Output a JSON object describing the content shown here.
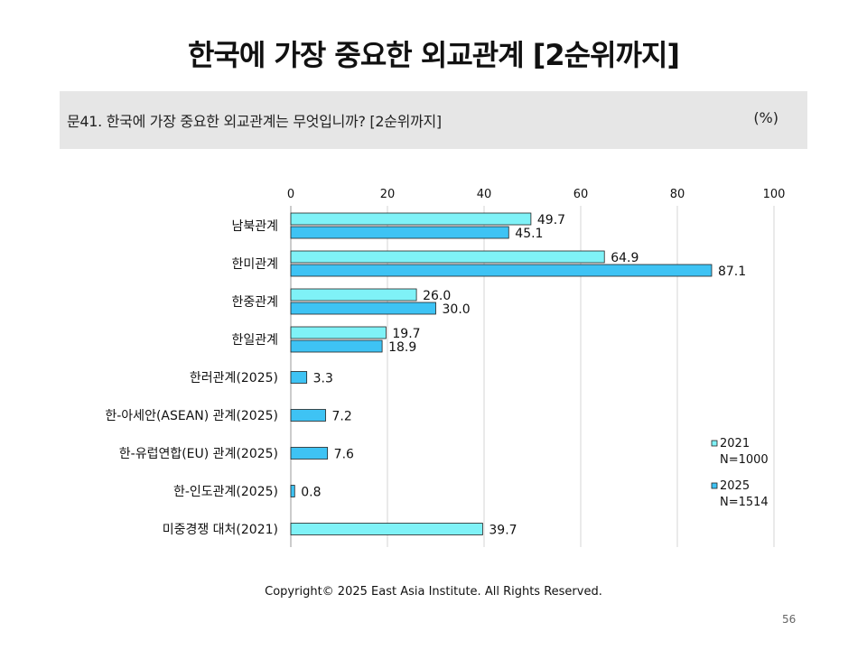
{
  "page": {
    "title": "한국에 가장 중요한 외교관계 [2순위까지]",
    "question": "문41. 한국에 가장 중요한 외교관계는 무엇입니까? [2순위까지]",
    "unit": "(%)",
    "footer": "Copyright© 2025 East Asia Institute. All Rights Reserved.",
    "page_number": "56"
  },
  "chart_data": {
    "type": "bar",
    "orientation": "horizontal",
    "title": "",
    "xlabel": "",
    "ylabel": "",
    "xlim": [
      0,
      100
    ],
    "ticks": [
      "0",
      "20",
      "40",
      "60",
      "80",
      "100"
    ],
    "grid": true,
    "legend_position": "bottom-right",
    "categories": [
      "남북관계",
      "한미관계",
      "한중관계",
      "한일관계",
      "한러관계(2025)",
      "한-아세안(ASEAN) 관계(2025)",
      "한-유럽연합(EU) 관계(2025)",
      "한-인도관계(2025)",
      "미중경쟁 대처(2021)"
    ],
    "series": [
      {
        "name": "2021",
        "legend_sub": "N=1000",
        "color": "#7FF2F7",
        "values": [
          49.7,
          64.9,
          26.0,
          19.7,
          null,
          null,
          null,
          null,
          39.7
        ],
        "labels": [
          "49.7",
          "64.9",
          "26.0",
          "19.7",
          "",
          "",
          "",
          "",
          "39.7"
        ]
      },
      {
        "name": "2025",
        "legend_sub": "N=1514",
        "color": "#3EC3F4",
        "values": [
          45.1,
          87.1,
          30.0,
          18.9,
          3.3,
          7.2,
          7.6,
          0.8,
          null
        ],
        "labels": [
          "45.1",
          "87.1",
          "30.0",
          "18.9",
          "3.3",
          "7.2",
          "7.6",
          "0.8",
          ""
        ]
      }
    ]
  }
}
